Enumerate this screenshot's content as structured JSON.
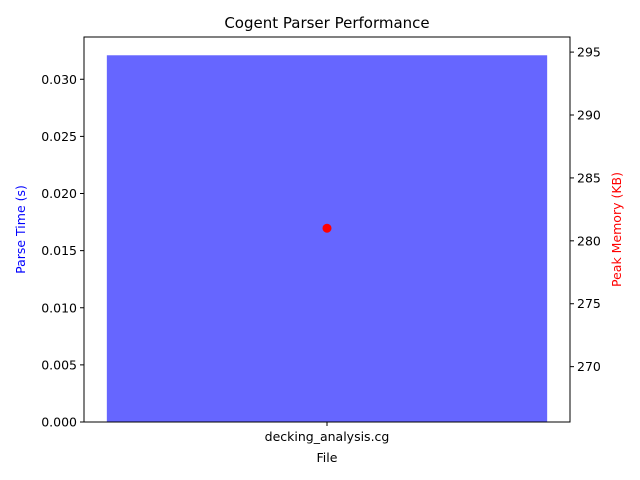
{
  "chart_data": {
    "type": "bar",
    "title": "Cogent Parser Performance",
    "xlabel": "File",
    "categories": [
      "decking_analysis.cg"
    ],
    "series": [
      {
        "name": "Parse Time (s)",
        "axis": "left",
        "mark": "bar",
        "values": [
          0.0321
        ],
        "color": "#6666ff"
      },
      {
        "name": "Peak Memory (KB)",
        "axis": "right",
        "mark": "point",
        "values": [
          281
        ],
        "color": "#ff0000"
      }
    ],
    "y_left": {
      "label": "Parse Time (s)",
      "label_color": "#0000ff",
      "range": [
        0,
        0.0337
      ],
      "ticks": [
        0.0,
        0.005,
        0.01,
        0.015,
        0.02,
        0.025,
        0.03
      ],
      "tick_labels": [
        "0.000",
        "0.005",
        "0.010",
        "0.015",
        "0.020",
        "0.025",
        "0.030"
      ]
    },
    "y_right": {
      "label": "Peak Memory (KB)",
      "label_color": "#ff0000",
      "range": [
        265.6,
        296.2
      ],
      "ticks": [
        270,
        275,
        280,
        285,
        290,
        295
      ],
      "tick_labels": [
        "270",
        "275",
        "280",
        "285",
        "290",
        "295"
      ]
    },
    "grid": false,
    "legend": "none"
  }
}
